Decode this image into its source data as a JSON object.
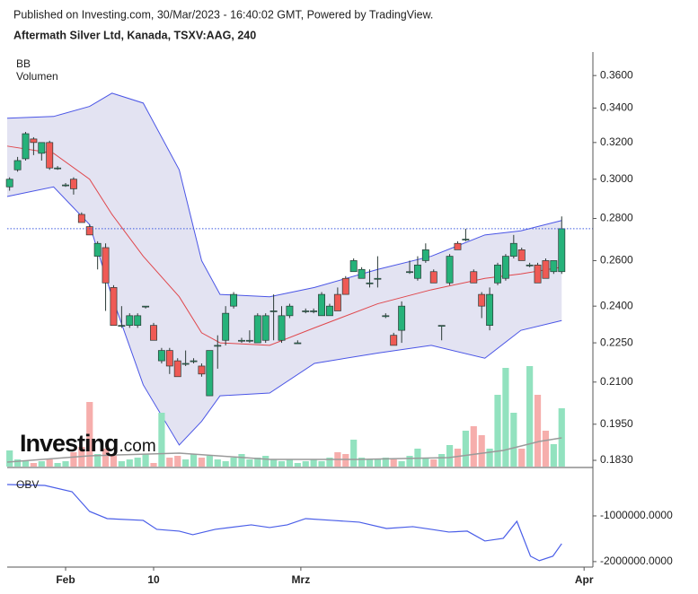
{
  "chart_data": [
    {
      "type": "candlestick",
      "source": "Published on Investing.com, 30/Mar/2023 - 16:40:02 GMT, Powered by TradingView.",
      "title": "Aftermath Silver Ltd, Kanada, TSXV:AAG, 240",
      "indicator_labels": [
        "BB",
        "Volumen"
      ],
      "watermark": [
        "Investing",
        ".com"
      ],
      "log": true,
      "ylim": [
        0.181,
        0.374
      ],
      "yticks": [
        {
          "value": 0.36,
          "label": "0.3600"
        },
        {
          "value": 0.34,
          "label": "0.3400"
        },
        {
          "value": 0.32,
          "label": "0.3200"
        },
        {
          "value": 0.3,
          "label": "0.3000"
        },
        {
          "value": 0.28,
          "label": "0.2800"
        },
        {
          "value": 0.26,
          "label": "0.2600"
        },
        {
          "value": 0.24,
          "label": "0.2400"
        },
        {
          "value": 0.225,
          "label": "0.2250"
        },
        {
          "value": 0.21,
          "label": "0.2100"
        },
        {
          "value": 0.195,
          "label": "0.1950"
        },
        {
          "value": 0.183,
          "label": "0.1830"
        }
      ],
      "xlim": [
        -0.3,
        72.9
      ],
      "xticks": [
        {
          "value": 7.0,
          "label": "Feb"
        },
        {
          "value": 18.0,
          "label": "10"
        },
        {
          "value": 36.4,
          "label": "Mrz"
        },
        {
          "value": 71.8,
          "label": "Apr"
        }
      ],
      "up_color": "#26b27a",
      "down_color": "#ef5a55",
      "wick_color": "#2b3a36",
      "x": [
        0,
        1,
        2,
        3,
        4,
        5,
        6,
        7,
        8,
        9,
        10,
        11,
        12,
        13,
        14,
        15,
        16,
        17,
        18,
        19,
        20,
        21,
        22,
        23,
        24,
        25,
        26,
        27,
        28,
        29,
        30,
        31,
        32,
        33,
        34,
        35,
        36,
        37,
        38,
        39,
        40,
        41,
        42,
        43,
        44,
        45,
        46,
        47,
        48,
        49,
        50,
        51,
        52,
        53,
        54,
        55,
        56,
        57,
        58,
        59,
        60,
        61,
        62,
        63,
        64,
        65,
        66,
        67,
        68,
        69
      ],
      "open": [
        0.296,
        0.305,
        0.311,
        0.322,
        0.314,
        0.32,
        0.306,
        0.297,
        0.3,
        0.282,
        0.276,
        0.262,
        0.266,
        0.248,
        0.232,
        0.232,
        0.232,
        0.24,
        0.232,
        0.218,
        0.222,
        0.218,
        0.217,
        0.218,
        0.216,
        0.205,
        0.224,
        0.226,
        0.24,
        0.226,
        0.226,
        0.225,
        0.226,
        0.238,
        0.226,
        0.236,
        0.225,
        0.238,
        0.238,
        0.236,
        0.236,
        0.245,
        0.252,
        0.255,
        0.252,
        0.25,
        0.252,
        0.236,
        0.228,
        0.23,
        0.255,
        0.252,
        0.26,
        0.255,
        0.232,
        0.25,
        0.268,
        0.27,
        0.255,
        0.245,
        0.232,
        0.25,
        0.252,
        0.262,
        0.265,
        0.258,
        0.258,
        0.26,
        0.255,
        0.255
      ],
      "high": [
        0.301,
        0.312,
        0.326,
        0.323,
        0.32,
        0.321,
        0.307,
        0.298,
        0.301,
        0.283,
        0.277,
        0.269,
        0.268,
        0.249,
        0.24,
        0.237,
        0.237,
        0.24,
        0.233,
        0.223,
        0.223,
        0.219,
        0.222,
        0.219,
        0.217,
        0.222,
        0.228,
        0.24,
        0.246,
        0.227,
        0.23,
        0.237,
        0.237,
        0.245,
        0.24,
        0.241,
        0.226,
        0.239,
        0.239,
        0.246,
        0.241,
        0.248,
        0.253,
        0.261,
        0.257,
        0.256,
        0.262,
        0.237,
        0.229,
        0.242,
        0.26,
        0.262,
        0.268,
        0.256,
        0.232,
        0.263,
        0.269,
        0.275,
        0.256,
        0.246,
        0.248,
        0.259,
        0.263,
        0.272,
        0.266,
        0.259,
        0.259,
        0.261,
        0.26,
        0.281
      ],
      "low": [
        0.294,
        0.304,
        0.31,
        0.313,
        0.31,
        0.305,
        0.305,
        0.296,
        0.292,
        0.278,
        0.272,
        0.256,
        0.238,
        0.232,
        0.231,
        0.231,
        0.231,
        0.239,
        0.226,
        0.217,
        0.213,
        0.212,
        0.216,
        0.217,
        0.212,
        0.205,
        0.215,
        0.224,
        0.239,
        0.225,
        0.225,
        0.225,
        0.225,
        0.226,
        0.225,
        0.235,
        0.225,
        0.237,
        0.237,
        0.236,
        0.236,
        0.238,
        0.245,
        0.255,
        0.252,
        0.248,
        0.248,
        0.235,
        0.224,
        0.225,
        0.254,
        0.251,
        0.259,
        0.25,
        0.226,
        0.249,
        0.265,
        0.269,
        0.25,
        0.235,
        0.23,
        0.249,
        0.251,
        0.261,
        0.26,
        0.257,
        0.25,
        0.252,
        0.254,
        0.254
      ],
      "close": [
        0.3,
        0.31,
        0.325,
        0.32,
        0.32,
        0.306,
        0.306,
        0.297,
        0.295,
        0.278,
        0.272,
        0.268,
        0.25,
        0.232,
        0.232,
        0.236,
        0.236,
        0.24,
        0.226,
        0.222,
        0.216,
        0.212,
        0.217,
        0.218,
        0.213,
        0.222,
        0.224,
        0.237,
        0.245,
        0.226,
        0.226,
        0.236,
        0.236,
        0.238,
        0.236,
        0.24,
        0.225,
        0.238,
        0.238,
        0.245,
        0.24,
        0.238,
        0.245,
        0.26,
        0.256,
        0.25,
        0.252,
        0.236,
        0.224,
        0.24,
        0.255,
        0.258,
        0.265,
        0.25,
        0.232,
        0.262,
        0.265,
        0.27,
        0.25,
        0.24,
        0.245,
        0.258,
        0.262,
        0.268,
        0.26,
        0.258,
        0.25,
        0.252,
        0.26,
        0.275
      ],
      "last_price_color": "#3d5be0",
      "bollinger": {
        "band_color": "#4a55e6",
        "middle_color": "#e0474c",
        "fill": "#e3e3f2",
        "x": [
          -0.3,
          5.5,
          10,
          12.8,
          16.7,
          21.2,
          24,
          26.3,
          32.5,
          38.1,
          46,
          52.7,
          59.4,
          63.9,
          69
        ],
        "upper": [
          0.334,
          0.335,
          0.341,
          0.349,
          0.343,
          0.305,
          0.26,
          0.245,
          0.244,
          0.248,
          0.256,
          0.262,
          0.272,
          0.274,
          0.279
        ],
        "middle": [
          0.318,
          0.314,
          0.3,
          0.282,
          0.262,
          0.244,
          0.229,
          0.225,
          0.224,
          0.231,
          0.241,
          0.247,
          0.252,
          0.254,
          0.257
        ],
        "lower": [
          0.291,
          0.296,
          0.277,
          0.244,
          0.209,
          0.188,
          0.196,
          0.205,
          0.206,
          0.217,
          0.221,
          0.224,
          0.219,
          0.23,
          0.234
        ]
      },
      "volume": {
        "up_color": "#92e2bf",
        "down_color": "#f6aeac",
        "ylim": [
          0,
          420000
        ],
        "values": [
          54000,
          24000,
          18000,
          12000,
          18000,
          24000,
          12000,
          18000,
          48000,
          66000,
          216000,
          42000,
          60000,
          36000,
          18000,
          24000,
          30000,
          42000,
          12000,
          180000,
          30000,
          36000,
          24000,
          42000,
          30000,
          36000,
          24000,
          18000,
          30000,
          42000,
          24000,
          30000,
          36000,
          24000,
          18000,
          24000,
          12000,
          18000,
          24000,
          18000,
          30000,
          48000,
          42000,
          90000,
          30000,
          24000,
          24000,
          30000,
          24000,
          18000,
          36000,
          60000,
          30000,
          24000,
          42000,
          72000,
          60000,
          120000,
          135000,
          105000,
          60000,
          240000,
          330000,
          180000,
          60000,
          336000,
          240000,
          120000,
          75000,
          195000
        ],
        "ma_color": "#9a9a9a",
        "ma_x": [
          -0.3,
          10,
          21.2,
          32.5,
          43.7,
          54.9,
          61.7,
          66.2,
          69
        ],
        "ma": [
          15000,
          36000,
          45000,
          24000,
          24000,
          30000,
          54000,
          84000,
          96000
        ]
      }
    },
    {
      "type": "line",
      "ylim": [
        -2120000,
        40000
      ],
      "yticks": [
        {
          "value": -1000000,
          "label": "-1000000.0000"
        },
        {
          "value": -2000000,
          "label": "-2000000.0000"
        }
      ],
      "x": [
        -0.3,
        4.4,
        7.8,
        10,
        12.2,
        16.7,
        18.4,
        21.2,
        22.9,
        25.7,
        30.2,
        32.5,
        34.7,
        37,
        40.3,
        43.7,
        47.1,
        50.4,
        52.7,
        54.9,
        57.2,
        59.4,
        61.7,
        63.4,
        65.1,
        66.2,
        67.9,
        69
      ],
      "series": [
        {
          "name": "OBV",
          "color": "#4a5ee8",
          "values": [
            -314000,
            -333000,
            -471000,
            -902000,
            -1059000,
            -1098000,
            -1294000,
            -1333000,
            -1412000,
            -1294000,
            -1196000,
            -1255000,
            -1196000,
            -1059000,
            -1098000,
            -1137000,
            -1275000,
            -1235000,
            -1294000,
            -1353000,
            -1333000,
            -1549000,
            -1490000,
            -1118000,
            -1882000,
            -1980000,
            -1882000,
            -1608000
          ]
        }
      ]
    }
  ]
}
